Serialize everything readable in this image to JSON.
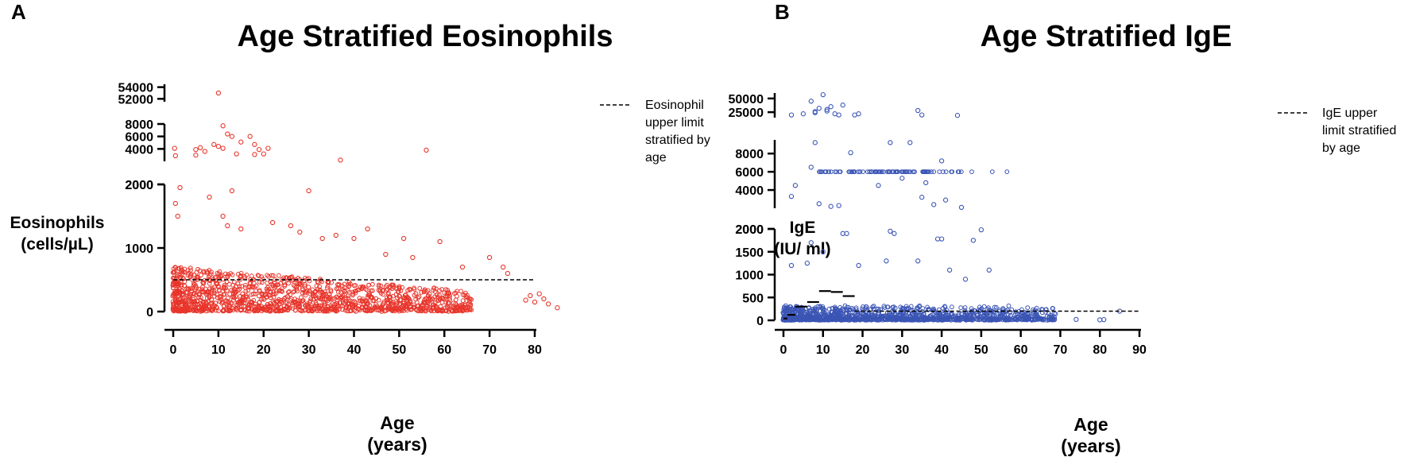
{
  "chart_data": [
    {
      "panel": "A",
      "type": "scatter",
      "title": "Age Stratified Eosinophils",
      "ylabel": [
        "Eosinophils",
        "(cells/µL)"
      ],
      "xlabel": [
        "Age",
        "(years)"
      ],
      "xlim": [
        -1,
        85
      ],
      "x_ticks": [
        0,
        10,
        20,
        30,
        40,
        50,
        60,
        70,
        80
      ],
      "y_segments": [
        {
          "range": [
            0,
            2000
          ],
          "ticks": [
            0,
            1000,
            2000
          ]
        },
        {
          "range": [
            2000,
            8000
          ],
          "ticks": [
            2000,
            4000,
            6000,
            8000
          ]
        },
        {
          "range": [
            51500,
            54500
          ],
          "ticks": [
            52000,
            54000
          ]
        }
      ],
      "legend": [
        "Eosinophil",
        "upper limit",
        "stratified by",
        "age"
      ],
      "reference_line": {
        "label": "Eosinophil upper limit stratified by age",
        "y": 500
      },
      "marker_color": "#e8352b",
      "point_cloud": {
        "n": 1400,
        "age_range": [
          0,
          85
        ],
        "typical_range": [
          0,
          700
        ],
        "note": "dense cluster of individual measurements, mostly below 500 cells/µL, thinning with age"
      },
      "points": [
        [
          10,
          53000
        ],
        [
          11,
          7700
        ],
        [
          12,
          6400
        ],
        [
          13,
          6000
        ],
        [
          9,
          4700
        ],
        [
          10,
          4400
        ],
        [
          11,
          4100
        ],
        [
          17,
          6000
        ],
        [
          15,
          5100
        ],
        [
          18,
          4700
        ],
        [
          19,
          3900
        ],
        [
          21,
          4100
        ],
        [
          14,
          3200
        ],
        [
          0.3,
          4100
        ],
        [
          0.5,
          2900
        ],
        [
          5,
          3900
        ],
        [
          6,
          4200
        ],
        [
          7,
          3600
        ],
        [
          5,
          3000
        ],
        [
          18,
          3100
        ],
        [
          20,
          3200
        ],
        [
          37,
          2200
        ],
        [
          56,
          3800
        ],
        [
          1.5,
          1950
        ],
        [
          0.5,
          1700
        ],
        [
          1,
          1500
        ],
        [
          8,
          1800
        ],
        [
          13,
          1900
        ],
        [
          11,
          1500
        ],
        [
          12,
          1350
        ],
        [
          15,
          1300
        ],
        [
          30,
          1900
        ],
        [
          22,
          1400
        ],
        [
          26,
          1350
        ],
        [
          28,
          1250
        ],
        [
          33,
          1150
        ],
        [
          36,
          1200
        ],
        [
          40,
          1150
        ],
        [
          43,
          1300
        ],
        [
          47,
          900
        ],
        [
          51,
          1150
        ],
        [
          53,
          850
        ],
        [
          59,
          1100
        ],
        [
          64,
          700
        ],
        [
          70,
          850
        ],
        [
          73,
          700
        ],
        [
          74,
          600
        ],
        [
          79,
          250
        ],
        [
          80,
          150
        ],
        [
          81,
          280
        ],
        [
          82,
          200
        ],
        [
          83,
          120
        ],
        [
          85,
          60
        ],
        [
          78,
          180
        ]
      ]
    },
    {
      "panel": "B",
      "type": "scatter",
      "title": "Age Stratified IgE",
      "ylabel": [
        "IgE",
        "(IU/ ml)"
      ],
      "xlabel": [
        "Age",
        "(years)"
      ],
      "xlim": [
        -1,
        90
      ],
      "x_ticks": [
        0,
        10,
        20,
        30,
        40,
        50,
        60,
        70,
        80,
        90
      ],
      "y_segments": [
        {
          "range": [
            0,
            2000
          ],
          "ticks": [
            0,
            500,
            1000,
            1500,
            2000
          ]
        },
        {
          "range": [
            2000,
            9500
          ],
          "ticks": [
            2000,
            4000,
            6000,
            8000
          ]
        },
        {
          "range": [
            15000,
            60000
          ],
          "ticks": [
            25000,
            50000
          ]
        }
      ],
      "legend": [
        "IgE upper",
        "limit stratified",
        "by age"
      ],
      "reference_line_steps": [
        {
          "x": [
            0,
            1
          ],
          "y": 40
        },
        {
          "x": [
            1,
            3
          ],
          "y": 120
        },
        {
          "x": [
            3,
            6
          ],
          "y": 300
        },
        {
          "x": [
            6,
            9
          ],
          "y": 400
        },
        {
          "x": [
            9,
            12
          ],
          "y": 640
        },
        {
          "x": [
            12,
            15
          ],
          "y": 620
        },
        {
          "x": [
            15,
            18
          ],
          "y": 530
        },
        {
          "x": [
            18,
            90
          ],
          "y": 200
        }
      ],
      "marker_color": "#3b55b5",
      "point_cloud": {
        "n": 1300,
        "age_range": [
          0,
          86
        ],
        "typical_range": [
          0,
          300
        ],
        "note": "dense band of low IgE values near zero across ages"
      },
      "row_6000": {
        "y": 6000,
        "x_range": [
          9,
          57
        ],
        "note": "values capped at 6000 IU/ml"
      },
      "points": [
        [
          10,
          57000
        ],
        [
          7,
          45000
        ],
        [
          9,
          32000
        ],
        [
          11,
          30000
        ],
        [
          12,
          35000
        ],
        [
          15,
          38000
        ],
        [
          5,
          22000
        ],
        [
          8,
          24000
        ],
        [
          13,
          22000
        ],
        [
          14,
          20000
        ],
        [
          18,
          20000
        ],
        [
          19,
          22000
        ],
        [
          2,
          20000
        ],
        [
          34,
          28000
        ],
        [
          35,
          20000
        ],
        [
          44,
          19000
        ],
        [
          8,
          26000
        ],
        [
          11,
          27000
        ],
        [
          8,
          9200
        ],
        [
          27,
          9200
        ],
        [
          32,
          9200
        ],
        [
          17,
          8100
        ],
        [
          40,
          7200
        ],
        [
          7,
          6500
        ],
        [
          3,
          4500
        ],
        [
          2,
          3300
        ],
        [
          9,
          2500
        ],
        [
          12,
          2200
        ],
        [
          14,
          2300
        ],
        [
          38,
          2400
        ],
        [
          45,
          2100
        ],
        [
          41,
          2900
        ],
        [
          35,
          3200
        ],
        [
          24,
          4500
        ],
        [
          30,
          5300
        ],
        [
          36,
          4800
        ],
        [
          15,
          1900
        ],
        [
          16,
          1900
        ],
        [
          27,
          1950
        ],
        [
          28,
          1900
        ],
        [
          39,
          1780
        ],
        [
          40,
          1780
        ],
        [
          50,
          1980
        ],
        [
          48,
          1750
        ],
        [
          7,
          1700
        ],
        [
          2,
          1200
        ],
        [
          6,
          1250
        ],
        [
          10,
          1500
        ],
        [
          19,
          1200
        ],
        [
          26,
          1300
        ],
        [
          34,
          1300
        ],
        [
          42,
          1100
        ],
        [
          46,
          900
        ],
        [
          52,
          1100
        ],
        [
          55,
          100
        ],
        [
          60,
          150
        ],
        [
          62,
          60
        ],
        [
          65,
          40
        ],
        [
          74,
          20
        ],
        [
          80,
          10
        ],
        [
          81,
          15
        ],
        [
          85,
          200
        ]
      ]
    }
  ]
}
